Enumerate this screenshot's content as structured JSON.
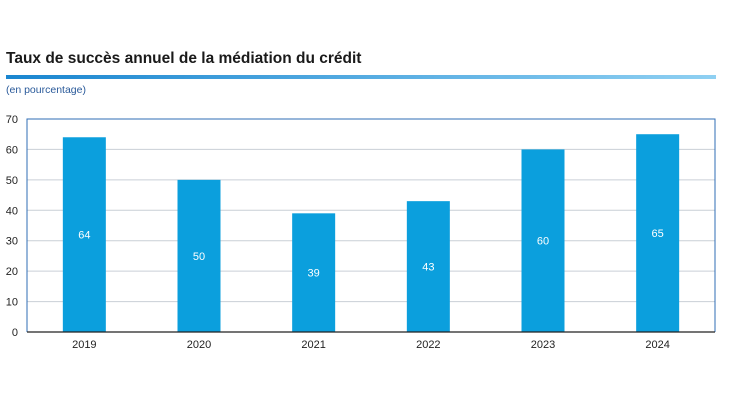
{
  "title": "Taux de succès annuel de la médiation du crédit",
  "subtitle": "(en pourcentage)",
  "colors": {
    "bar": "#0b9fdd",
    "rule_start": "#1a86d0",
    "rule_end": "#8fd0f2",
    "frame": "#2f6db5",
    "grid": "#c9cfd6",
    "axis": "#222222"
  },
  "chart_data": {
    "type": "bar",
    "categories": [
      "2019",
      "2020",
      "2021",
      "2022",
      "2023",
      "2024"
    ],
    "values": [
      64,
      50,
      39,
      43,
      60,
      65
    ],
    "data_labels": [
      "64",
      "50",
      "39",
      "43",
      "60",
      "65"
    ],
    "ylim": [
      0,
      70
    ],
    "yticks": [
      0,
      10,
      20,
      30,
      40,
      50,
      60,
      70
    ],
    "grid": true,
    "legend": "none"
  }
}
